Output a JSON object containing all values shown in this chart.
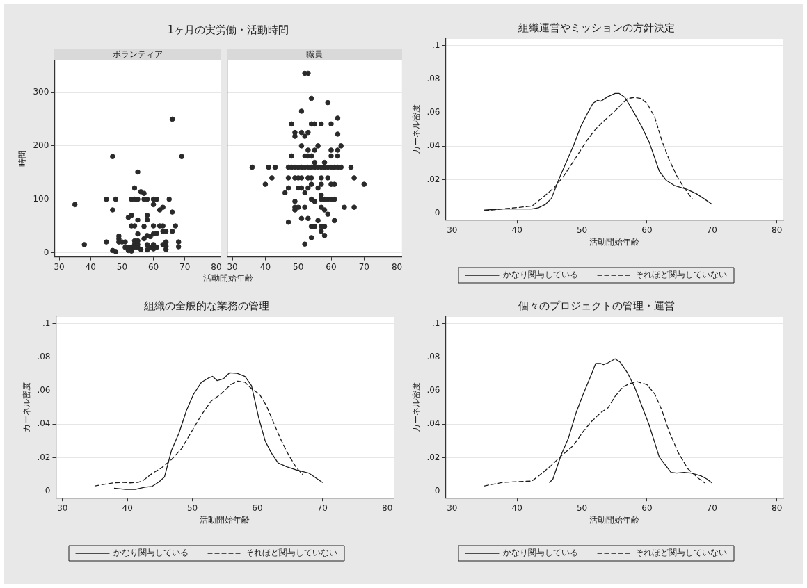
{
  "chart_data": [
    {
      "type": "scatter",
      "title": "1ヶ月の実労働・活動時間",
      "subtitle": "ボランティア",
      "xlabel": "活動開始年齢",
      "ylabel": "時間",
      "xlim": [
        28.5,
        81.5
      ],
      "xticks": [
        30,
        40,
        50,
        60,
        70,
        80
      ],
      "ylim": [
        -8,
        360
      ],
      "yticks": [
        0,
        100,
        200,
        300
      ],
      "grid": "y",
      "marker": "circle",
      "color": "#2a2a2a",
      "x": [
        35,
        38,
        45,
        45,
        47,
        47,
        47,
        48,
        48,
        49,
        49,
        49,
        50,
        51,
        51,
        52,
        52,
        52,
        53,
        53,
        53,
        53,
        53,
        54,
        54,
        54,
        54,
        54,
        54,
        55,
        55,
        55,
        55,
        55,
        55,
        55,
        56,
        56,
        57,
        57,
        57,
        57,
        58,
        58,
        58,
        58,
        58,
        58,
        59,
        59,
        60,
        60,
        60,
        60,
        60,
        60,
        61,
        61,
        61,
        62,
        62,
        63,
        63,
        63,
        63,
        64,
        64,
        64,
        64,
        65,
        66,
        66,
        66,
        67,
        68,
        68,
        69
      ],
      "values": [
        90,
        15,
        20,
        100,
        180,
        80,
        4,
        2,
        100,
        31,
        26,
        20,
        20,
        20,
        10,
        66,
        10,
        4,
        70,
        100,
        50,
        10,
        3,
        100,
        121,
        50,
        22,
        15,
        10,
        100,
        151,
        61,
        35,
        22,
        15,
        10,
        114,
        6,
        111,
        100,
        49,
        26,
        100,
        70,
        61,
        32,
        15,
        5,
        30,
        10,
        100,
        90,
        50,
        35,
        15,
        7,
        100,
        36,
        10,
        80,
        50,
        85,
        50,
        40,
        15,
        40,
        20,
        6,
        12,
        100,
        250,
        76,
        40,
        50,
        20,
        11,
        180
      ]
    },
    {
      "type": "scatter",
      "subtitle": "職員",
      "xlim": [
        28.5,
        81.5
      ],
      "xticks": [
        30,
        40,
        50,
        60,
        70,
        80
      ],
      "ylim": [
        -8,
        360
      ],
      "yticks": [
        0,
        100,
        200,
        300
      ],
      "tick_labels": "x",
      "grid": "y",
      "marker": "circle",
      "color": "#2a2a2a",
      "x": [
        52,
        53,
        54,
        59,
        51,
        62,
        48,
        54,
        55,
        57,
        60,
        49,
        51,
        53,
        49,
        52,
        62,
        51,
        56,
        63,
        53,
        55,
        60,
        62,
        48,
        52,
        53,
        54,
        60,
        62,
        55,
        58,
        36,
        41,
        43,
        47,
        48,
        49,
        50,
        51,
        52,
        53,
        54,
        55,
        56,
        57,
        58,
        59,
        60,
        61,
        62,
        63,
        66,
        42,
        47,
        49,
        50,
        51,
        53,
        54,
        57,
        59,
        67,
        40,
        54,
        57,
        60,
        61,
        70,
        47,
        50,
        51,
        53,
        56,
        46,
        52,
        57,
        54,
        57,
        58,
        59,
        60,
        61,
        55,
        49,
        49,
        50,
        52,
        57,
        64,
        67,
        49,
        58,
        59,
        51,
        53,
        61,
        56,
        47,
        54,
        55,
        57,
        58,
        57,
        58,
        54,
        52
      ],
      "values": [
        336,
        336,
        289,
        281,
        265,
        252,
        241,
        241,
        241,
        241,
        241,
        225,
        225,
        225,
        218,
        218,
        222,
        200,
        200,
        200,
        192,
        192,
        192,
        192,
        181,
        181,
        181,
        181,
        181,
        181,
        169,
        169,
        160,
        160,
        160,
        160,
        160,
        160,
        160,
        160,
        160,
        160,
        160,
        160,
        160,
        160,
        160,
        160,
        160,
        160,
        160,
        160,
        160,
        140,
        140,
        140,
        140,
        140,
        140,
        140,
        140,
        140,
        140,
        128,
        128,
        128,
        128,
        128,
        128,
        121,
        121,
        121,
        121,
        121,
        112,
        112,
        108,
        100,
        100,
        100,
        100,
        100,
        100,
        96,
        96,
        85,
        85,
        85,
        85,
        85,
        85,
        80,
        80,
        72,
        64,
        64,
        60,
        60,
        57,
        49,
        49,
        49,
        49,
        40,
        32,
        28,
        16
      ]
    },
    {
      "type": "line",
      "title": "組織運営やミッションの方針決定",
      "xlabel": "活動開始年齢",
      "ylabel": "カーネル密度",
      "xlim": [
        29,
        81
      ],
      "xticks": [
        30,
        40,
        50,
        60,
        70,
        80
      ],
      "ylim": [
        -0.004,
        0.104
      ],
      "yticks": [
        0,
        {
          "value": 0.02,
          "label": ".02"
        },
        {
          "value": 0.04,
          "label": ".04"
        },
        {
          "value": 0.06,
          "label": ".06"
        },
        {
          "value": 0.08,
          "label": ".08"
        },
        {
          "value": 0.1,
          "label": ".1"
        }
      ],
      "grid": "y",
      "legend": "bottom",
      "marker": "none",
      "series": [
        {
          "name": "かなり関与している",
          "color": "#1a1a1a",
          "line_style": "solid",
          "x": [
            35,
            37.8,
            42.3,
            43.3,
            44.4,
            45.3,
            46.5,
            47.6,
            48.7,
            49.8,
            50.9,
            51.7,
            52.4,
            52.9,
            54,
            55.1,
            55.7,
            56.6,
            57.8,
            59.2,
            60.4,
            61.9,
            63,
            64.2,
            66,
            67.6,
            68.7,
            70
          ],
          "values": [
            0.0018,
            0.0025,
            0.0025,
            0.0032,
            0.0053,
            0.0088,
            0.0208,
            0.0306,
            0.0404,
            0.0516,
            0.06,
            0.0656,
            0.0673,
            0.0668,
            0.0696,
            0.0715,
            0.0715,
            0.0691,
            0.0614,
            0.0516,
            0.0418,
            0.025,
            0.0194,
            0.0165,
            0.0144,
            0.0116,
            0.0088,
            0.0053
          ]
        },
        {
          "name": "それほど関与していない",
          "color": "#1a1a1a",
          "line_style": "dashed",
          "x": [
            35,
            37.8,
            41.6,
            42.3,
            43.8,
            45.7,
            47.2,
            49.1,
            50.6,
            52.1,
            53.6,
            54.8,
            55.9,
            57,
            58.1,
            59.1,
            60,
            61.2,
            62.3,
            63.4,
            64.6,
            65.7,
            67
          ],
          "values": [
            0.0015,
            0.0025,
            0.0039,
            0.0042,
            0.0088,
            0.0151,
            0.0222,
            0.0334,
            0.0425,
            0.0502,
            0.0558,
            0.06,
            0.0642,
            0.0684,
            0.0691,
            0.0684,
            0.0656,
            0.0572,
            0.0432,
            0.032,
            0.0222,
            0.0151,
            0.0084
          ]
        }
      ]
    },
    {
      "type": "line",
      "title": "組織の全般的な業務の管理",
      "xlabel": "活動開始年齢",
      "ylabel": "カーネル密度",
      "xlim": [
        29,
        81
      ],
      "xticks": [
        30,
        40,
        50,
        60,
        70,
        80
      ],
      "ylim": [
        -0.004,
        0.104
      ],
      "yticks": [
        0,
        {
          "value": 0.02,
          "label": ".02"
        },
        {
          "value": 0.04,
          "label": ".04"
        },
        {
          "value": 0.06,
          "label": ".06"
        },
        {
          "value": 0.08,
          "label": ".08"
        },
        {
          "value": 0.1,
          "label": ".1"
        }
      ],
      "grid": "y",
      "legend": "bottom",
      "marker": "none",
      "series": [
        {
          "name": "かなり関与している",
          "color": "#1a1a1a",
          "line_style": "solid",
          "x": [
            38,
            39.7,
            41.2,
            42.7,
            43.8,
            44.9,
            45.7,
            46.8,
            47.9,
            49.1,
            50.2,
            51.4,
            52.5,
            53.1,
            53.8,
            54.8,
            55.7,
            56.9,
            58.1,
            59.1,
            60.2,
            61.2,
            62.1,
            63.2,
            64.6,
            66,
            67.9,
            70
          ],
          "values": [
            0.0017,
            0.001,
            0.001,
            0.0024,
            0.0028,
            0.0056,
            0.0084,
            0.0245,
            0.0343,
            0.0483,
            0.058,
            0.065,
            0.0676,
            0.0685,
            0.066,
            0.0671,
            0.0706,
            0.0703,
            0.0685,
            0.063,
            0.044,
            0.03,
            0.0231,
            0.0168,
            0.0144,
            0.0126,
            0.0108,
            0.0052
          ]
        },
        {
          "name": "それほど関与していない",
          "color": "#1a1a1a",
          "line_style": "dashed",
          "x": [
            35,
            36.7,
            37.8,
            39.3,
            40.4,
            41.6,
            42.3,
            43.8,
            45.3,
            46.8,
            48.3,
            49.8,
            51.4,
            52.9,
            54.4,
            55.9,
            57,
            58.1,
            59.2,
            60.3,
            61.4,
            62.6,
            63.7,
            64.8,
            66,
            67
          ],
          "values": [
            0.0031,
            0.0042,
            0.0049,
            0.0052,
            0.0049,
            0.0052,
            0.006,
            0.0105,
            0.014,
            0.0189,
            0.0252,
            0.035,
            0.0455,
            0.0538,
            0.058,
            0.0636,
            0.0657,
            0.065,
            0.0608,
            0.058,
            0.051,
            0.0399,
            0.0301,
            0.0217,
            0.014,
            0.0098
          ]
        }
      ]
    },
    {
      "type": "line",
      "title": "個々のプロジェクトの管理・運営",
      "xlabel": "活動開始年齢",
      "ylabel": "カーネル密度",
      "xlim": [
        29,
        81
      ],
      "xticks": [
        30,
        40,
        50,
        60,
        70,
        80
      ],
      "ylim": [
        -0.004,
        0.104
      ],
      "yticks": [
        0,
        {
          "value": 0.02,
          "label": ".02"
        },
        {
          "value": 0.04,
          "label": ".04"
        },
        {
          "value": 0.06,
          "label": ".06"
        },
        {
          "value": 0.08,
          "label": ".08"
        },
        {
          "value": 0.1,
          "label": ".1"
        }
      ],
      "grid": "y",
      "legend": "bottom",
      "marker": "none",
      "series": [
        {
          "name": "かなり関与している",
          "color": "#1a1a1a",
          "line_style": "solid",
          "x": [
            45,
            45.5,
            46.8,
            47.9,
            49.1,
            50.2,
            51.4,
            52.1,
            52.9,
            53.3,
            54,
            55.1,
            55.9,
            57,
            58.1,
            59.2,
            60.3,
            61.9,
            63,
            63.7,
            64.6,
            65.7,
            66.8,
            68.3,
            69.2,
            70
          ],
          "values": [
            0.0052,
            0.007,
            0.0217,
            0.0315,
            0.0469,
            0.058,
            0.0692,
            0.0762,
            0.0762,
            0.0755,
            0.0766,
            0.079,
            0.0769,
            0.0706,
            0.0622,
            0.051,
            0.0399,
            0.0203,
            0.0147,
            0.0112,
            0.0108,
            0.0112,
            0.0108,
            0.0091,
            0.0073,
            0.0049
          ]
        },
        {
          "name": "それほど関与していない",
          "color": "#1a1a1a",
          "line_style": "dashed",
          "x": [
            35,
            37.8,
            40,
            42.3,
            43.8,
            45.3,
            46.8,
            48.7,
            50.2,
            51.4,
            52.9,
            54,
            55.1,
            56.3,
            57.4,
            58.5,
            60,
            61.2,
            62.3,
            63.4,
            64.8,
            66.3,
            67.9,
            68.9
          ],
          "values": [
            0.0031,
            0.0052,
            0.0056,
            0.006,
            0.0105,
            0.0154,
            0.021,
            0.0273,
            0.0357,
            0.0413,
            0.0469,
            0.0497,
            0.0566,
            0.0622,
            0.0643,
            0.0653,
            0.0636,
            0.058,
            0.0483,
            0.0357,
            0.0231,
            0.0133,
            0.0077,
            0.0049
          ]
        }
      ]
    }
  ]
}
